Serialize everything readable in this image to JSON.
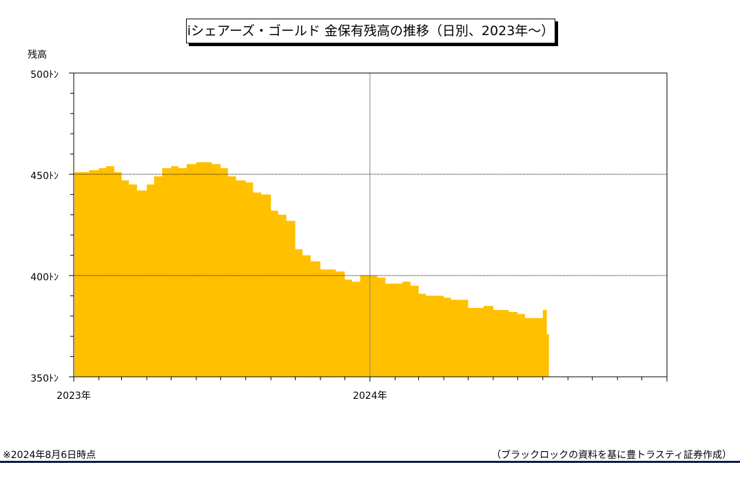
{
  "title": "iシェアーズ・ゴールド 金保有残高の推移（日別、2023年～）",
  "footnote_left": "※2024年8月6日時点",
  "footnote_right": "（ブラックロックの資料を基に豊トラスティ証券作成）",
  "colors": {
    "area": "#FFC000",
    "footer_rule": "#0D1B4A"
  },
  "chart_data": {
    "type": "area",
    "ylabel": "残高",
    "ylim": [
      350,
      500
    ],
    "yticks": [
      "500ﾄﾝ",
      "450ﾄﾝ",
      "400ﾄﾝ",
      "350ﾄﾝ"
    ],
    "ytick_values": [
      500,
      450,
      400,
      350
    ],
    "xlim": [
      "2023-01",
      "2024-12"
    ],
    "xticks": [
      {
        "label": "2023年",
        "x": "2023-01"
      },
      {
        "label": "2024年",
        "x": "2024-01"
      }
    ],
    "gridlines_y": [
      450,
      400
    ],
    "gridlines_x": [
      "2024-01"
    ],
    "series": [
      {
        "x": [
          "2023-01-02",
          "2023-01-20",
          "2023-02-01",
          "2023-02-10",
          "2023-02-20",
          "2023-03-01",
          "2023-03-10",
          "2023-03-20",
          "2023-04-01",
          "2023-04-10",
          "2023-04-20",
          "2023-05-01",
          "2023-05-10",
          "2023-05-20",
          "2023-06-01",
          "2023-06-10",
          "2023-06-20",
          "2023-07-01",
          "2023-07-10",
          "2023-07-20",
          "2023-08-01",
          "2023-08-10",
          "2023-08-20",
          "2023-09-01",
          "2023-09-10",
          "2023-09-20",
          "2023-10-01",
          "2023-10-10",
          "2023-10-20",
          "2023-11-01",
          "2023-11-10",
          "2023-11-20",
          "2023-12-01",
          "2023-12-10",
          "2023-12-20",
          "2024-01-01",
          "2024-01-10",
          "2024-01-20",
          "2024-02-01",
          "2024-02-10",
          "2024-02-20",
          "2024-03-01",
          "2024-03-10",
          "2024-03-20",
          "2024-04-01",
          "2024-04-10",
          "2024-04-20",
          "2024-05-01",
          "2024-05-10",
          "2024-05-20",
          "2024-06-01",
          "2024-06-10",
          "2024-06-20",
          "2024-07-01",
          "2024-07-10",
          "2024-07-20",
          "2024-08-01",
          "2024-08-06"
        ],
        "values": [
          451,
          452,
          453,
          454,
          451,
          447,
          445,
          442,
          445,
          449,
          453,
          454,
          453,
          455,
          456,
          456,
          455,
          453,
          449,
          447,
          446,
          441,
          440,
          432,
          430,
          427,
          413,
          410,
          407,
          403,
          403,
          402,
          398,
          397,
          400,
          400,
          399,
          396,
          396,
          397,
          395,
          391,
          390,
          390,
          389,
          388,
          388,
          384,
          384,
          385,
          383,
          383,
          382,
          381,
          379,
          379,
          383,
          371
        ]
      }
    ]
  }
}
